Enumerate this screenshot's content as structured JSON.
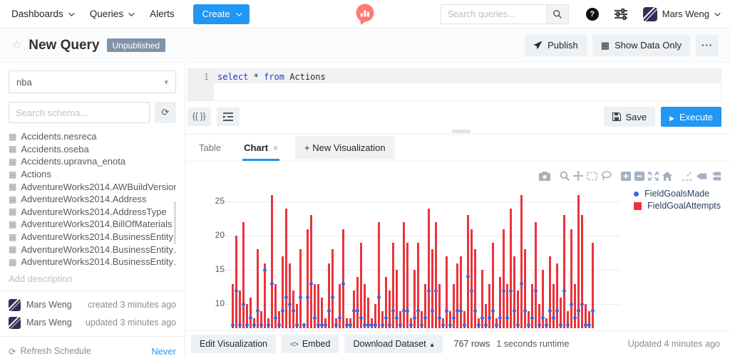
{
  "navbar": {
    "menu": [
      {
        "label": "Dashboards"
      },
      {
        "label": "Queries"
      },
      {
        "label": "Alerts"
      }
    ],
    "create_label": "Create",
    "search_placeholder": "Search queries...",
    "user_name": "Mars Weng"
  },
  "header": {
    "title": "New Query",
    "badge": "Unpublished",
    "publish_label": "Publish",
    "show_data_only_label": "Show Data Only",
    "more_label": "···"
  },
  "sidebar": {
    "datasource_value": "nba",
    "schema_search_placeholder": "Search schema...",
    "tables": [
      "Accidents.nesreca",
      "Accidents.oseba",
      "Accidents.upravna_enota",
      "Actions",
      "AdventureWorks2014.AWBuildVersion",
      "AdventureWorks2014.Address",
      "AdventureWorks2014.AddressType",
      "AdventureWorks2014.BillOfMaterials",
      "AdventureWorks2014.BusinessEntity",
      "AdventureWorks2014.BusinessEntity…",
      "AdventureWorks2014.BusinessEntity…"
    ],
    "description_placeholder": "Add description",
    "meta": [
      {
        "name": "Mars Weng",
        "detail": "created 3 minutes ago"
      },
      {
        "name": "Mars Weng",
        "detail": "updated 3 minutes ago"
      }
    ],
    "refresh_schedule_label": "Refresh Schedule",
    "refresh_schedule_value": "Never"
  },
  "editor": {
    "line_number": "1",
    "keyword_1": "select",
    "operator": "*",
    "keyword_2": "from",
    "table_ref": "Actions",
    "params_button_label": "{{ }}",
    "save_label": "Save",
    "execute_label": "Execute"
  },
  "tabs": {
    "table_label": "Table",
    "chart_label": "Chart",
    "chart_close": "×",
    "new_viz_label": "+ New Visualization"
  },
  "footer": {
    "edit_visualization_label": "Edit Visualization",
    "embed_label": "Embed",
    "download_label": "Download Dataset",
    "rows_text": "767 rows",
    "runtime_text": "1 seconds runtime",
    "updated_text": "Updated 4 minutes ago"
  },
  "colors": {
    "accent_blue": "#2196f3",
    "bar_red": "#ea333b",
    "dot_blue": "#3a66dd",
    "badge_slate": "#7f94a8"
  },
  "modebar_icons": [
    "camera-icon",
    "zoom-icon",
    "pan-icon",
    "box-select-icon",
    "lasso-icon",
    "zoom-in-icon",
    "zoom-out-icon",
    "autoscale-icon",
    "reset-axes-icon",
    "spikelines-icon",
    "hover-closest-icon",
    "hover-compare-icon"
  ],
  "chart_data": {
    "type": "bar+scatter",
    "series": [
      {
        "name": "FieldGoalsMade",
        "type": "scatter",
        "color": "#3a66dd",
        "values": [
          7,
          12,
          7,
          10,
          7,
          8,
          7,
          9,
          7,
          15,
          7,
          13,
          8,
          7,
          9,
          11,
          10,
          9,
          7,
          11,
          7,
          11,
          13,
          8,
          7,
          7,
          7,
          9,
          11,
          7,
          8,
          13,
          7,
          7,
          9,
          9,
          8,
          7,
          7,
          7,
          7,
          11,
          7,
          8,
          7,
          9,
          8,
          7,
          9,
          9,
          7,
          8,
          9,
          7,
          8,
          12,
          9,
          12,
          8,
          7,
          9,
          7,
          8,
          9,
          9,
          7,
          14,
          12,
          9,
          7,
          8,
          7,
          8,
          9,
          7,
          8,
          12,
          8,
          12,
          9,
          7,
          13,
          9,
          7,
          8,
          12,
          7,
          8,
          7,
          9,
          8,
          9,
          7,
          12,
          7,
          10,
          8,
          9,
          10,
          7,
          7,
          9
        ]
      },
      {
        "name": "FieldGoalAttempts",
        "type": "bar",
        "color": "#ea333b",
        "values": [
          13,
          20,
          12,
          22,
          10,
          11,
          8,
          18,
          9,
          16,
          8,
          26,
          13,
          9,
          17,
          24,
          16,
          12,
          10,
          18,
          7,
          21,
          23,
          13,
          13,
          11,
          8,
          16,
          18,
          8,
          13,
          21,
          8,
          8,
          12,
          14,
          19,
          13,
          11,
          8,
          10,
          22,
          9,
          14,
          12,
          19,
          15,
          9,
          22,
          19,
          8,
          15,
          19,
          9,
          13,
          24,
          18,
          22,
          13,
          8,
          17,
          9,
          13,
          16,
          17,
          9,
          23,
          21,
          18,
          8,
          15,
          10,
          13,
          19,
          8,
          14,
          21,
          13,
          24,
          17,
          12,
          26,
          18,
          9,
          13,
          22,
          10,
          15,
          8,
          17,
          13,
          16,
          11,
          23,
          9,
          21,
          13,
          26,
          23,
          10,
          9,
          19
        ]
      }
    ],
    "y_axis": {
      "ticks": [
        10,
        15,
        20,
        25
      ],
      "visible_range": [
        6.5,
        27.3
      ]
    },
    "x_axis": {
      "tick_labels_visible": false
    },
    "grid": true,
    "legend_position": "top-right"
  }
}
